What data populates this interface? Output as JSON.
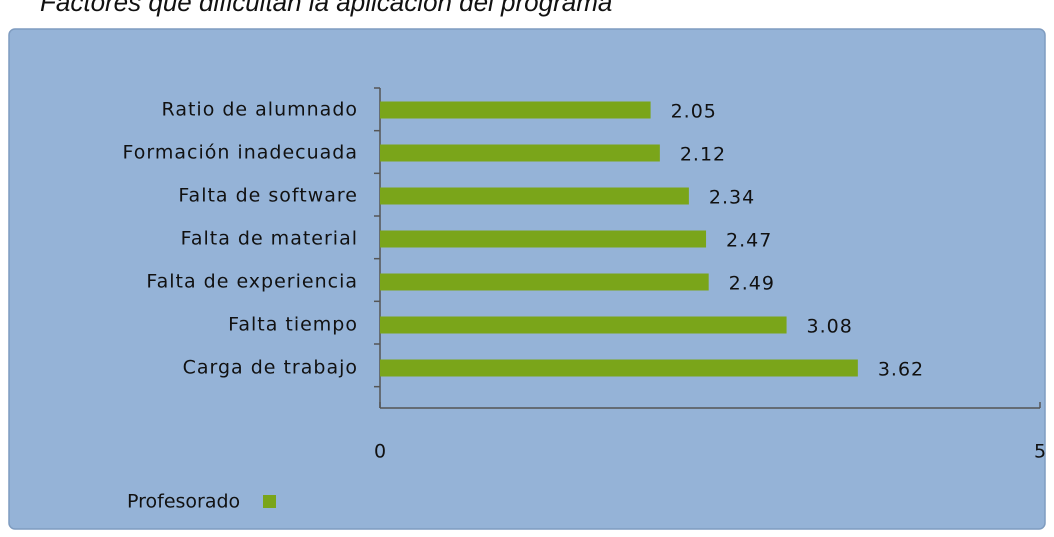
{
  "chart_data": {
    "type": "bar",
    "orientation": "horizontal",
    "title": "Factores que dificultan la aplicación del programa",
    "categories": [
      "Ratio de alumnado",
      "Formación inadecuada",
      "Falta de software",
      "Falta de material",
      "Falta de experiencia",
      "Falta tiempo",
      "Carga de trabajo"
    ],
    "series": [
      {
        "name": "Profesorado",
        "color": "#7aa51a",
        "values": [
          2.05,
          2.12,
          2.34,
          2.47,
          2.49,
          3.08,
          3.62
        ]
      }
    ],
    "xlim": [
      0,
      5
    ],
    "xticks": [
      0,
      5
    ],
    "grid": false,
    "legend": "bottom-left"
  }
}
